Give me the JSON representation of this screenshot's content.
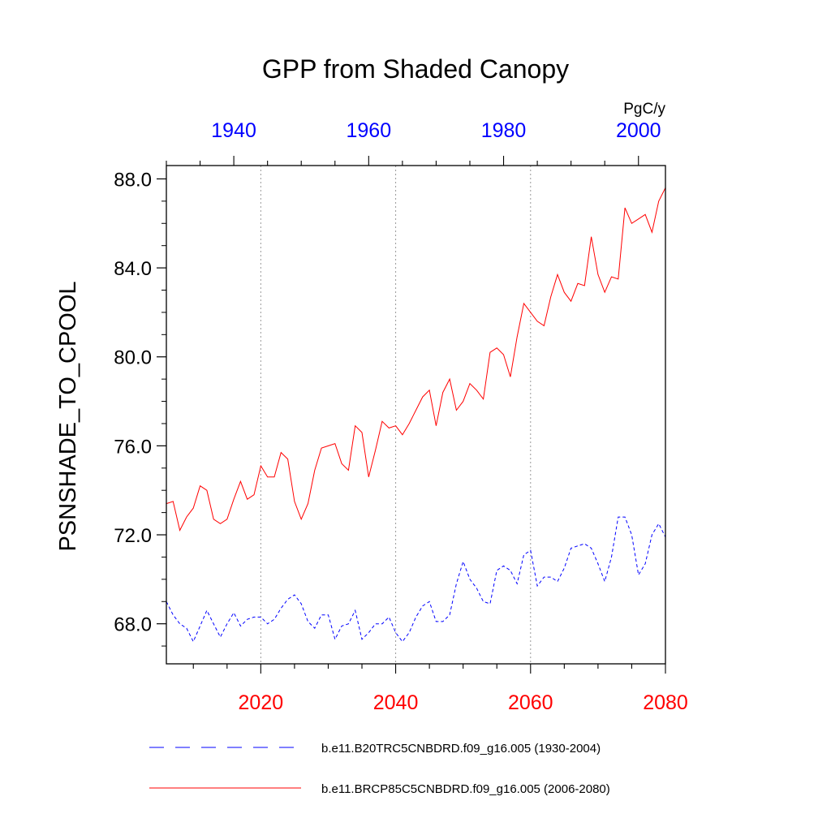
{
  "chart_data": {
    "type": "line",
    "title": "GPP from Shaded Canopy",
    "ylabel": "PSNSHADE_TO_CPOOL",
    "units": "PgC/y",
    "ylim": [
      66.2,
      88.6
    ],
    "y_ticks": [
      "68.0",
      "72.0",
      "76.0",
      "80.0",
      "84.0",
      "88.0"
    ],
    "bottom_axis": {
      "xlim": [
        2006,
        2080
      ],
      "ticks": [
        "2020",
        "2040",
        "2060",
        "2080"
      ],
      "color": "#ff0000"
    },
    "top_axis": {
      "xlim": [
        1930,
        2004
      ],
      "ticks": [
        "1940",
        "1960",
        "1980",
        "2000"
      ],
      "color": "#0000ff"
    },
    "grid": "vertical dotted at major x ticks",
    "legend_position": "bottom",
    "series": [
      {
        "name": "b.e11.B20TRC5CNBDRD.f09_g16.005 (1930-2004)",
        "color": "#0000ff",
        "style": "dashed",
        "axis": "top",
        "x": [
          1930,
          1931,
          1932,
          1933,
          1934,
          1935,
          1936,
          1937,
          1938,
          1939,
          1940,
          1941,
          1942,
          1943,
          1944,
          1945,
          1946,
          1947,
          1948,
          1949,
          1950,
          1951,
          1952,
          1953,
          1954,
          1955,
          1956,
          1957,
          1958,
          1959,
          1960,
          1961,
          1962,
          1963,
          1964,
          1965,
          1966,
          1967,
          1968,
          1969,
          1970,
          1971,
          1972,
          1973,
          1974,
          1975,
          1976,
          1977,
          1978,
          1979,
          1980,
          1981,
          1982,
          1983,
          1984,
          1985,
          1986,
          1987,
          1988,
          1989,
          1990,
          1991,
          1992,
          1993,
          1994,
          1995,
          1996,
          1997,
          1998,
          1999,
          2000,
          2001,
          2002,
          2003,
          2004
        ],
        "values": [
          69.0,
          68.4,
          68.0,
          67.8,
          67.2,
          67.9,
          68.6,
          68.0,
          67.4,
          68.0,
          68.5,
          67.9,
          68.2,
          68.3,
          68.3,
          68.0,
          68.2,
          68.7,
          69.1,
          69.3,
          68.9,
          68.1,
          67.8,
          68.4,
          68.4,
          67.3,
          67.9,
          68.0,
          68.6,
          67.3,
          67.6,
          68.0,
          68.0,
          68.3,
          67.6,
          67.2,
          67.6,
          68.3,
          68.8,
          69.0,
          68.1,
          68.1,
          68.4,
          69.8,
          70.8,
          70.0,
          69.6,
          69.0,
          68.9,
          70.4,
          70.6,
          70.4,
          69.8,
          71.1,
          71.3,
          69.7,
          70.1,
          70.1,
          69.9,
          70.5,
          71.4,
          71.5,
          71.6,
          71.4,
          70.7,
          69.9,
          71.0,
          72.8,
          72.8,
          72.0,
          70.2,
          70.7,
          72.0,
          72.5,
          71.9
        ]
      },
      {
        "name": "b.e11.BRCP85C5CNBDRD.f09_g16.005 (2006-2080)",
        "color": "#ff0000",
        "style": "solid",
        "axis": "bottom",
        "x": [
          2006,
          2007,
          2008,
          2009,
          2010,
          2011,
          2012,
          2013,
          2014,
          2015,
          2016,
          2017,
          2018,
          2019,
          2020,
          2021,
          2022,
          2023,
          2024,
          2025,
          2026,
          2027,
          2028,
          2029,
          2030,
          2031,
          2032,
          2033,
          2034,
          2035,
          2036,
          2037,
          2038,
          2039,
          2040,
          2041,
          2042,
          2043,
          2044,
          2045,
          2046,
          2047,
          2048,
          2049,
          2050,
          2051,
          2052,
          2053,
          2054,
          2055,
          2056,
          2057,
          2058,
          2059,
          2060,
          2061,
          2062,
          2063,
          2064,
          2065,
          2066,
          2067,
          2068,
          2069,
          2070,
          2071,
          2072,
          2073,
          2074,
          2075,
          2076,
          2077,
          2078,
          2079,
          2080
        ],
        "values": [
          73.4,
          73.5,
          72.2,
          72.8,
          73.2,
          74.2,
          74.0,
          72.7,
          72.5,
          72.7,
          73.6,
          74.4,
          73.6,
          73.8,
          75.1,
          74.6,
          74.6,
          75.7,
          75.4,
          73.5,
          72.7,
          73.4,
          74.9,
          75.9,
          76.0,
          76.1,
          75.2,
          74.9,
          76.9,
          76.6,
          74.6,
          75.8,
          77.1,
          76.8,
          76.9,
          76.5,
          77.0,
          77.6,
          78.2,
          78.5,
          76.9,
          78.4,
          79.0,
          77.6,
          78.0,
          78.8,
          78.5,
          78.1,
          80.2,
          80.4,
          80.1,
          79.1,
          80.9,
          82.4,
          82.0,
          81.6,
          81.4,
          82.7,
          83.7,
          82.9,
          82.5,
          83.3,
          83.2,
          85.4,
          83.7,
          82.9,
          83.6,
          83.5,
          86.7,
          86.0,
          86.2,
          86.4,
          85.6,
          87.0,
          87.6
        ]
      }
    ]
  }
}
